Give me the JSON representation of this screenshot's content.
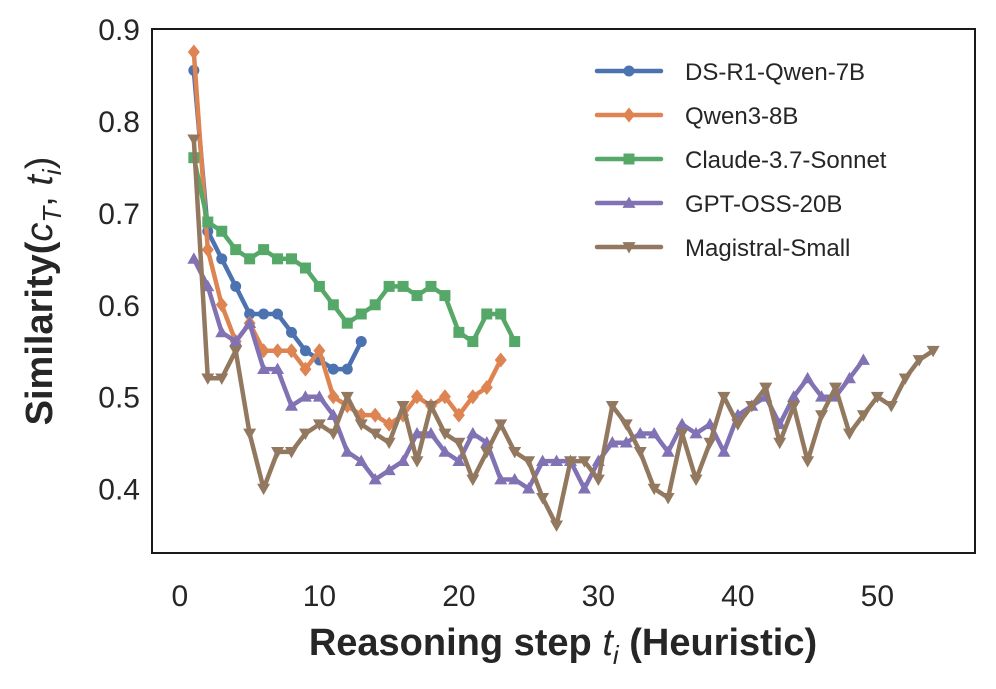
{
  "chart_data": {
    "type": "line",
    "title": "",
    "xlabel": "Reasoning step t_i (Heuristic)",
    "xlabel_parts": {
      "prefix": "Reasoning step ",
      "var": "t",
      "sub": "i",
      "suffix": " (Heuristic)"
    },
    "ylabel": "Similarity(c_T, t_i)",
    "ylabel_parts": {
      "prefix": "Similarity(",
      "var1": "c",
      "sub1": "T",
      "sep": ", ",
      "var2": "t",
      "sub2": "i",
      "suffix": ")"
    },
    "xlim": [
      -2,
      57
    ],
    "ylim": [
      0.33,
      0.9
    ],
    "xticks": [
      0,
      10,
      20,
      30,
      40,
      50
    ],
    "yticks": [
      0.4,
      0.5,
      0.6,
      0.7,
      0.8,
      0.9
    ],
    "ytick_labels": [
      "0.4",
      "0.5",
      "0.6",
      "0.7",
      "0.8",
      "0.9"
    ],
    "grid": false,
    "legend_position": "top-right",
    "series": [
      {
        "name": "DS-R1-Qwen-7B",
        "color": "#4c72b0",
        "marker": "circle",
        "x": [
          1,
          2,
          3,
          4,
          5,
          6,
          7,
          8,
          9,
          10,
          11,
          12,
          13
        ],
        "values": [
          0.855,
          0.68,
          0.65,
          0.62,
          0.59,
          0.59,
          0.59,
          0.57,
          0.55,
          0.54,
          0.53,
          0.53,
          0.56
        ]
      },
      {
        "name": "Qwen3-8B",
        "color": "#dd8452",
        "marker": "diamond",
        "x": [
          1,
          2,
          3,
          4,
          5,
          6,
          7,
          8,
          9,
          10,
          11,
          12,
          13,
          14,
          15,
          16,
          17,
          18,
          19,
          20,
          21,
          22,
          23
        ],
        "values": [
          0.875,
          0.66,
          0.6,
          0.56,
          0.58,
          0.55,
          0.55,
          0.55,
          0.53,
          0.55,
          0.5,
          0.49,
          0.48,
          0.48,
          0.47,
          0.48,
          0.5,
          0.49,
          0.5,
          0.48,
          0.5,
          0.51,
          0.54
        ]
      },
      {
        "name": "Claude-3.7-Sonnet",
        "color": "#55a868",
        "marker": "square",
        "x": [
          1,
          2,
          3,
          4,
          5,
          6,
          7,
          8,
          9,
          10,
          11,
          12,
          13,
          14,
          15,
          16,
          17,
          18,
          19,
          20,
          21,
          22,
          23,
          24
        ],
        "values": [
          0.76,
          0.69,
          0.68,
          0.66,
          0.65,
          0.66,
          0.65,
          0.65,
          0.64,
          0.62,
          0.6,
          0.58,
          0.59,
          0.6,
          0.62,
          0.62,
          0.61,
          0.62,
          0.61,
          0.57,
          0.56,
          0.59,
          0.59,
          0.56
        ]
      },
      {
        "name": "GPT-OSS-20B",
        "color": "#8172b3",
        "marker": "triangle-up",
        "x": [
          1,
          2,
          3,
          4,
          5,
          6,
          7,
          8,
          9,
          10,
          11,
          12,
          13,
          14,
          15,
          16,
          17,
          18,
          19,
          20,
          21,
          22,
          23,
          24,
          25,
          26,
          27,
          28,
          29,
          30,
          31,
          32,
          33,
          34,
          35,
          36,
          37,
          38,
          39,
          40,
          41,
          42,
          43,
          44,
          45,
          46,
          47,
          48,
          49
        ],
        "values": [
          0.65,
          0.62,
          0.57,
          0.56,
          0.58,
          0.53,
          0.53,
          0.49,
          0.5,
          0.5,
          0.48,
          0.44,
          0.43,
          0.41,
          0.42,
          0.43,
          0.46,
          0.46,
          0.44,
          0.43,
          0.46,
          0.45,
          0.41,
          0.41,
          0.4,
          0.43,
          0.43,
          0.43,
          0.4,
          0.43,
          0.45,
          0.45,
          0.46,
          0.46,
          0.44,
          0.47,
          0.46,
          0.47,
          0.44,
          0.48,
          0.49,
          0.5,
          0.47,
          0.5,
          0.52,
          0.5,
          0.5,
          0.52,
          0.54
        ]
      },
      {
        "name": "Magistral-Small",
        "color": "#937860",
        "marker": "triangle-down",
        "x": [
          1,
          2,
          3,
          4,
          5,
          6,
          7,
          8,
          9,
          10,
          11,
          12,
          13,
          14,
          15,
          16,
          17,
          18,
          19,
          20,
          21,
          22,
          23,
          24,
          25,
          26,
          27,
          28,
          29,
          30,
          31,
          32,
          33,
          34,
          35,
          36,
          37,
          38,
          39,
          40,
          41,
          42,
          43,
          44,
          45,
          46,
          47,
          48,
          49,
          50,
          51,
          52,
          53,
          54
        ],
        "values": [
          0.78,
          0.52,
          0.52,
          0.55,
          0.46,
          0.4,
          0.44,
          0.44,
          0.46,
          0.47,
          0.46,
          0.5,
          0.47,
          0.46,
          0.45,
          0.49,
          0.43,
          0.49,
          0.46,
          0.45,
          0.41,
          0.44,
          0.47,
          0.44,
          0.43,
          0.39,
          0.36,
          0.43,
          0.43,
          0.41,
          0.49,
          0.47,
          0.44,
          0.4,
          0.39,
          0.46,
          0.41,
          0.45,
          0.5,
          0.47,
          0.49,
          0.51,
          0.45,
          0.49,
          0.43,
          0.48,
          0.51,
          0.46,
          0.48,
          0.5,
          0.49,
          0.52,
          0.54,
          0.55
        ]
      }
    ]
  }
}
